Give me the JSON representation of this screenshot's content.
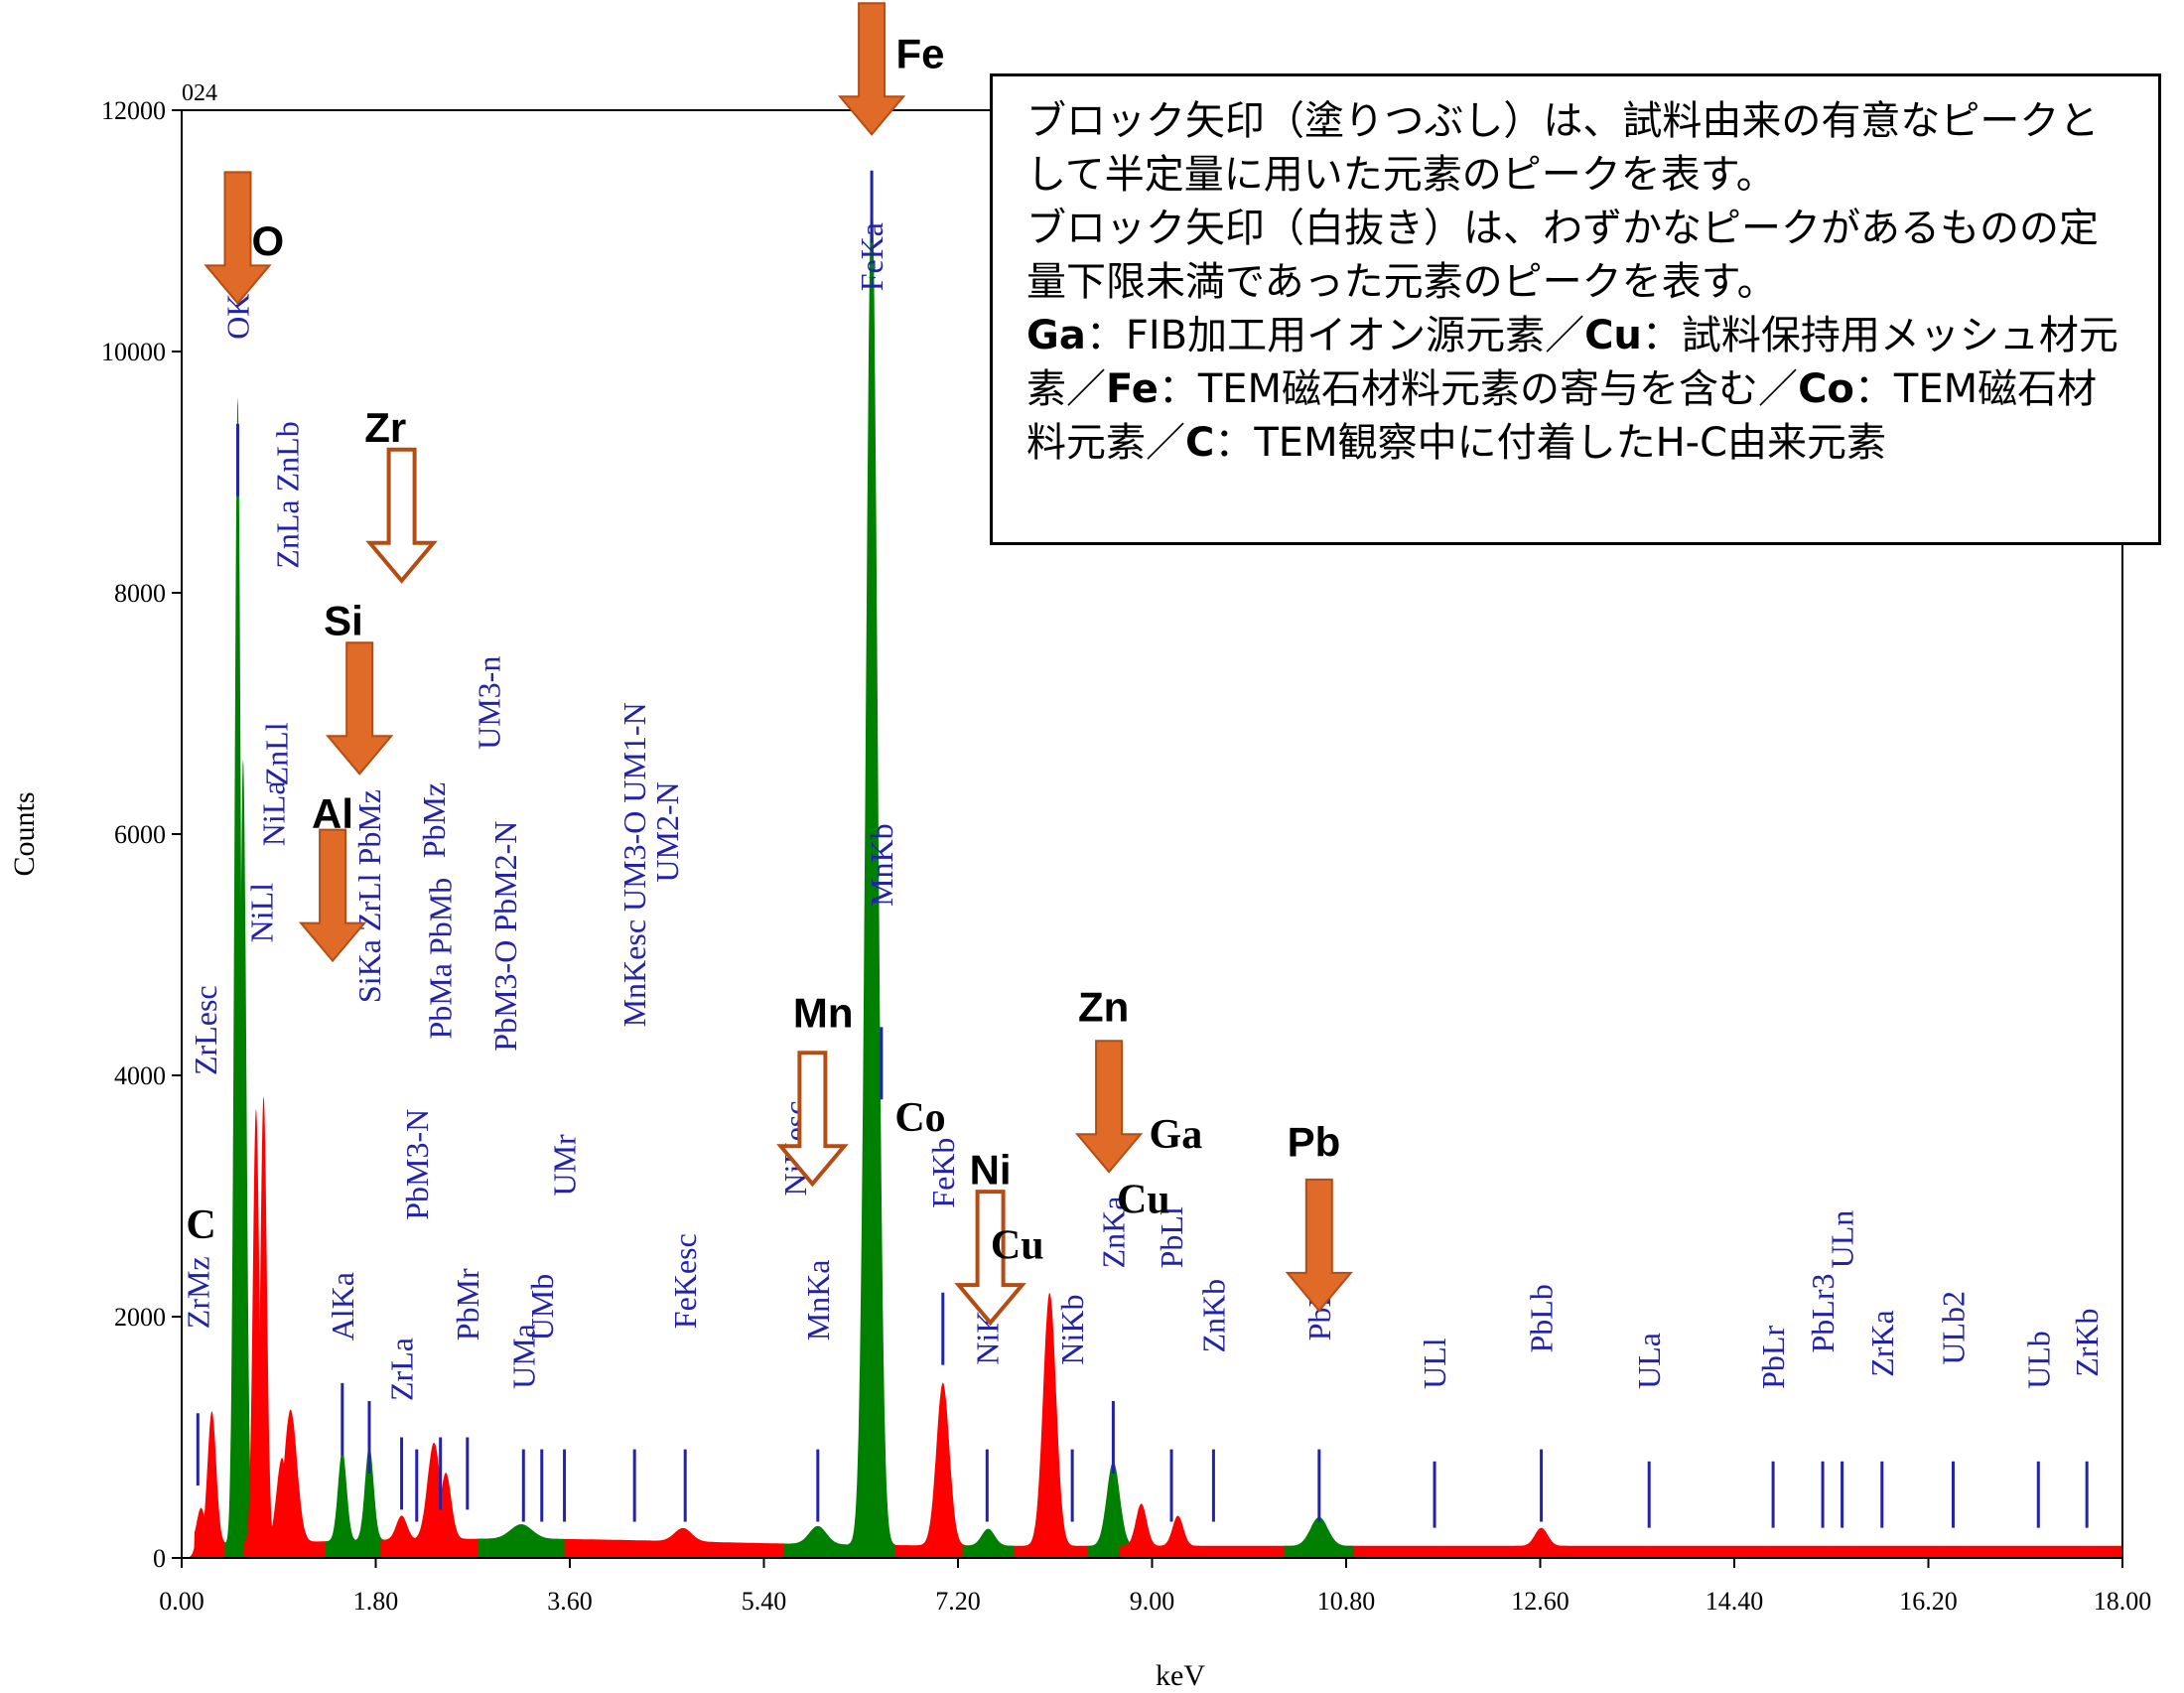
{
  "chart_data": {
    "type": "area",
    "sample_id": "024",
    "xlabel": "keV",
    "ylabel": "Counts",
    "xlim": [
      0,
      18
    ],
    "ylim": [
      0,
      12000
    ],
    "x_ticks": [
      "0.00",
      "1.80",
      "3.60",
      "5.40",
      "7.20",
      "9.00",
      "10.80",
      "12.60",
      "14.40",
      "16.20",
      "18.00"
    ],
    "y_ticks": [
      "0",
      "2000",
      "4000",
      "6000",
      "8000",
      "10000",
      "12000"
    ],
    "background_level": 100,
    "peaks": [
      {
        "x": 0.18,
        "y": 300,
        "w": 0.04,
        "color": "#ff0000"
      },
      {
        "x": 0.28,
        "y": 1100,
        "w": 0.04,
        "color": "#ff0000"
      },
      {
        "x": 0.52,
        "y": 9500,
        "w": 0.03,
        "color": "#008000"
      },
      {
        "x": 0.57,
        "y": 6500,
        "w": 0.03,
        "color": "#008000"
      },
      {
        "x": 0.69,
        "y": 3600,
        "w": 0.03,
        "color": "#ff0000"
      },
      {
        "x": 0.76,
        "y": 3700,
        "w": 0.03,
        "color": "#ff0000"
      },
      {
        "x": 0.93,
        "y": 700,
        "w": 0.05,
        "color": "#ff0000"
      },
      {
        "x": 1.01,
        "y": 1100,
        "w": 0.06,
        "color": "#ff0000"
      },
      {
        "x": 1.49,
        "y": 750,
        "w": 0.04,
        "color": "#008000"
      },
      {
        "x": 1.74,
        "y": 780,
        "w": 0.04,
        "color": "#008000"
      },
      {
        "x": 2.04,
        "y": 200,
        "w": 0.05,
        "color": "#ff0000"
      },
      {
        "x": 2.34,
        "y": 800,
        "w": 0.06,
        "color": "#ff0000"
      },
      {
        "x": 2.45,
        "y": 550,
        "w": 0.05,
        "color": "#ff0000"
      },
      {
        "x": 3.15,
        "y": 120,
        "w": 0.1,
        "color": "#008000"
      },
      {
        "x": 4.65,
        "y": 110,
        "w": 0.08,
        "color": "#ff0000"
      },
      {
        "x": 5.9,
        "y": 150,
        "w": 0.08,
        "color": "#008000"
      },
      {
        "x": 6.4,
        "y": 11300,
        "w": 0.055,
        "color": "#008000"
      },
      {
        "x": 7.06,
        "y": 1350,
        "w": 0.06,
        "color": "#ff0000"
      },
      {
        "x": 7.48,
        "y": 140,
        "w": 0.06,
        "color": "#008000"
      },
      {
        "x": 8.05,
        "y": 2100,
        "w": 0.06,
        "color": "#ff0000"
      },
      {
        "x": 8.64,
        "y": 700,
        "w": 0.06,
        "color": "#008000"
      },
      {
        "x": 8.9,
        "y": 350,
        "w": 0.05,
        "color": "#ff0000"
      },
      {
        "x": 9.24,
        "y": 250,
        "w": 0.05,
        "color": "#ff0000"
      },
      {
        "x": 10.55,
        "y": 240,
        "w": 0.08,
        "color": "#008000"
      },
      {
        "x": 12.61,
        "y": 150,
        "w": 0.06,
        "color": "#ff0000"
      }
    ],
    "peak_labels": [
      {
        "text": "ZrMz",
        "x": 0.15,
        "line_y": 1200,
        "text_y": 2100
      },
      {
        "text": "ZrLesc",
        "x": 0.22,
        "line_y": 0,
        "text_y": 4200
      },
      {
        "text": "OKa",
        "x": 0.52,
        "line_y": 9400,
        "text_y": 10300
      },
      {
        "text": "ZnLa ZnLb",
        "x": 0.98,
        "line_y": 0,
        "text_y": 8400
      },
      {
        "text": "ZnLl",
        "x": 0.88,
        "line_y": 0,
        "text_y": 6600
      },
      {
        "text": "NiLa",
        "x": 0.85,
        "line_y": 0,
        "text_y": 6100
      },
      {
        "text": "NiLl",
        "x": 0.74,
        "line_y": 0,
        "text_y": 5300
      },
      {
        "text": "PbMz",
        "x": 2.34,
        "line_y": 0,
        "text_y": 6000
      },
      {
        "text": "UM3-n",
        "x": 2.85,
        "line_y": 0,
        "text_y": 6900
      },
      {
        "text": "AlKa",
        "x": 1.49,
        "line_y": 1450,
        "text_y": 2000
      },
      {
        "text": "SiKa ZrLl PbMz",
        "x": 1.74,
        "line_y": 1300,
        "text_y": 4800
      },
      {
        "text": "ZrLa",
        "x": 2.04,
        "line_y": 1000,
        "text_y": 1500
      },
      {
        "text": "PbM3-N",
        "x": 2.18,
        "line_y": 900,
        "text_y": 3000
      },
      {
        "text": "PbMa PbMb",
        "x": 2.4,
        "line_y": 1000,
        "text_y": 4500
      },
      {
        "text": "PbMr",
        "x": 2.65,
        "line_y": 1000,
        "text_y": 2000
      },
      {
        "text": "UMa",
        "x": 3.17,
        "line_y": 900,
        "text_y": 1600
      },
      {
        "text": "UMb",
        "x": 3.34,
        "line_y": 900,
        "text_y": 2000
      },
      {
        "text": "PbM3-O PbM2-N",
        "x": 3.0,
        "line_y": 0,
        "text_y": 4400
      },
      {
        "text": "UMr",
        "x": 3.55,
        "line_y": 900,
        "text_y": 3200
      },
      {
        "text": "MnKesc UM3-O UM1-N",
        "x": 4.2,
        "line_y": 900,
        "text_y": 4600
      },
      {
        "text": "UM2-N",
        "x": 4.5,
        "line_y": 0,
        "text_y": 5800
      },
      {
        "text": "FeKesc",
        "x": 4.67,
        "line_y": 900,
        "text_y": 2100
      },
      {
        "text": "NiKesc",
        "x": 5.69,
        "line_y": 0,
        "text_y": 3200
      },
      {
        "text": "MnKa",
        "x": 5.9,
        "line_y": 900,
        "text_y": 2000
      },
      {
        "text": "FeKa",
        "x": 6.4,
        "line_y": 11500,
        "text_y": 10700
      },
      {
        "text": "MnKb",
        "x": 6.49,
        "line_y": 4400,
        "text_y": 5600
      },
      {
        "text": "FeKb",
        "x": 7.06,
        "line_y": 2200,
        "text_y": 3100
      },
      {
        "text": "NiKa",
        "x": 7.47,
        "line_y": 900,
        "text_y": 1800
      },
      {
        "text": "NiKb",
        "x": 8.26,
        "line_y": 900,
        "text_y": 1800
      },
      {
        "text": "ZnKa",
        "x": 8.64,
        "line_y": 1300,
        "text_y": 2600
      },
      {
        "text": "PbLl",
        "x": 9.18,
        "line_y": 900,
        "text_y": 2600
      },
      {
        "text": "ZnKb",
        "x": 9.57,
        "line_y": 900,
        "text_y": 1900
      },
      {
        "text": "PbLa",
        "x": 10.55,
        "line_y": 900,
        "text_y": 2000
      },
      {
        "text": "ULl",
        "x": 11.62,
        "line_y": 800,
        "text_y": 1600
      },
      {
        "text": "PbLb",
        "x": 12.61,
        "line_y": 900,
        "text_y": 1900
      },
      {
        "text": "ULa",
        "x": 13.61,
        "line_y": 800,
        "text_y": 1600
      },
      {
        "text": "PbLr",
        "x": 14.76,
        "line_y": 800,
        "text_y": 1600
      },
      {
        "text": "PbLr3",
        "x": 15.22,
        "line_y": 800,
        "text_y": 1900
      },
      {
        "text": "ULn",
        "x": 15.4,
        "line_y": 800,
        "text_y": 2600
      },
      {
        "text": "ZrKa",
        "x": 15.77,
        "line_y": 800,
        "text_y": 1700
      },
      {
        "text": "ULb2",
        "x": 16.43,
        "line_y": 800,
        "text_y": 1800
      },
      {
        "text": "ULb",
        "x": 17.22,
        "line_y": 800,
        "text_y": 1600
      },
      {
        "text": "ZrKb",
        "x": 17.67,
        "line_y": 800,
        "text_y": 1700
      }
    ],
    "element_markers": [
      {
        "el": "O",
        "x": 0.52,
        "tip_y": 10400,
        "filled": true,
        "label_dx": 0.28,
        "label_y": 10800
      },
      {
        "el": "Zr",
        "x": 2.04,
        "tip_y": 8100,
        "filled": false,
        "label_dx": -0.15,
        "label_y": 9250
      },
      {
        "el": "Si",
        "x": 1.65,
        "tip_y": 6500,
        "filled": true,
        "label_dx": -0.15,
        "label_y": 7650
      },
      {
        "el": "Al",
        "x": 1.4,
        "tip_y": 4950,
        "filled": true,
        "label_dx": 0.0,
        "label_y": 6050
      },
      {
        "el": "Fe",
        "x": 6.4,
        "tip_y": 11800,
        "filled": true,
        "label_dx": 0.45,
        "label_y": 12350
      },
      {
        "el": "Mn",
        "x": 5.85,
        "tip_y": 3100,
        "filled": false,
        "label_dx": 0.1,
        "label_y": 4400
      },
      {
        "el": "Ni",
        "x": 7.5,
        "tip_y": 1950,
        "filled": false,
        "label_dx": 0.0,
        "label_y": 3100
      },
      {
        "el": "Zn",
        "x": 8.6,
        "tip_y": 3200,
        "filled": true,
        "label_dx": -0.05,
        "label_y": 4450
      },
      {
        "el": "Pb",
        "x": 10.55,
        "tip_y": 2050,
        "filled": true,
        "label_dx": -0.05,
        "label_y": 3330
      }
    ],
    "annotations": [
      {
        "text": "C",
        "x": 0.18,
        "y": 2650,
        "font": "serif"
      },
      {
        "text": "Co",
        "x": 6.85,
        "y": 3540,
        "font": "serif"
      },
      {
        "text": "Ga",
        "x": 9.22,
        "y": 3400,
        "font": "serif"
      },
      {
        "text": "Cu",
        "x": 8.92,
        "y": 2860,
        "font": "serif"
      },
      {
        "text": "Cu",
        "x": 7.75,
        "y": 2480,
        "font": "serif"
      }
    ],
    "colors": {
      "element_green": "#008000",
      "background_red": "#ff0000",
      "label_blue": "#2222aa",
      "arrow_orange": "#e06a28",
      "arrow_orange_dark": "#b44d14"
    }
  },
  "note": {
    "line1": "ブロック矢印（塗りつぶし）は、試料由来の有意なピークとして半定量に用いた元素のピークを表す。",
    "line2": "ブロック矢印（白抜き）は、わずかなピークがあるものの定量下限未満であった元素のピークを表す。",
    "ga_symbol": "Ga",
    "ga_text": "：FIB加工用イオン源元素／",
    "cu_symbol": "Cu",
    "cu_text": "：試料保持用メッシュ材元素／",
    "fe_symbol": "Fe",
    "fe_text": "：TEM磁石材料元素の寄与を含む／",
    "co_symbol": "Co",
    "co_text": "：TEM磁石材料元素／",
    "c_symbol": "C",
    "c_text": "：TEM観察中に付着したH-C由来元素"
  }
}
